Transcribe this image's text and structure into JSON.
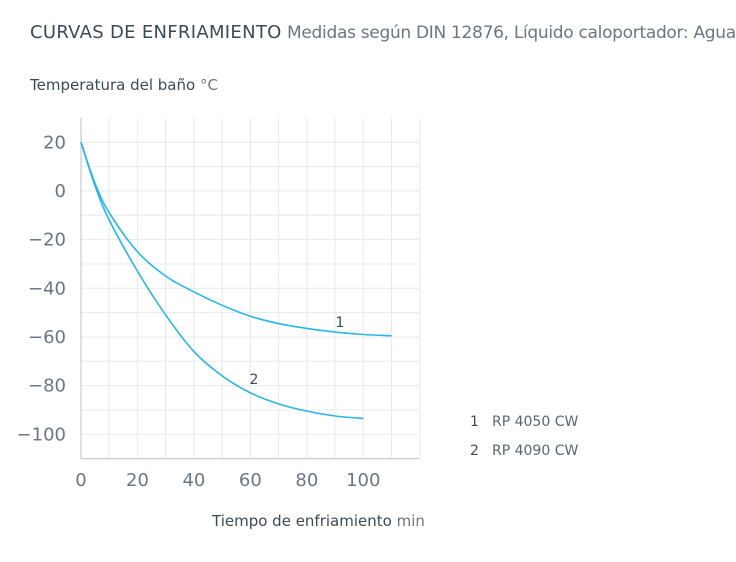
{
  "header": {
    "title": "CURVAS DE ENFRIAMIENTO",
    "subtitle": "Medidas según DIN 12876, Líquido caloportador: Agua"
  },
  "chart_data": {
    "type": "line",
    "title": "CURVAS DE ENFRIAMIENTO",
    "subtitle": "Medidas según DIN 12876, Líquido caloportador: Agua",
    "ylabel": "Temperatura del baño",
    "yunit": "°C",
    "xlabel": "Tiempo de enfriamiento",
    "xunit": "min",
    "xlim": [
      0,
      120
    ],
    "ylim": [
      -110,
      30
    ],
    "xticks": [
      0,
      20,
      40,
      60,
      80,
      100
    ],
    "yticks": [
      20,
      0,
      -20,
      -40,
      -60,
      -80,
      -100
    ],
    "ytick_labels": [
      "20",
      "0",
      "−20",
      "−40",
      "−60",
      "−80",
      "−100"
    ],
    "grid": true,
    "line_color": "#29b6e8",
    "legend_placement": "right",
    "series": [
      {
        "label": "1",
        "name": "RP 4050 CW",
        "x": [
          0,
          5,
          10,
          20,
          30,
          40,
          50,
          60,
          70,
          80,
          90,
          100,
          110
        ],
        "y": [
          20,
          3,
          -9,
          -25,
          -35,
          -41.5,
          -47,
          -51.5,
          -54.5,
          -56.5,
          -58,
          -59,
          -59.5
        ]
      },
      {
        "label": "2",
        "name": "RP 4090 CW",
        "x": [
          0,
          5,
          10,
          20,
          30,
          40,
          50,
          60,
          70,
          80,
          90,
          100
        ],
        "y": [
          20,
          2,
          -12,
          -33,
          -51,
          -66,
          -76,
          -83,
          -87.5,
          -90.5,
          -92.5,
          -93.5
        ]
      }
    ]
  }
}
